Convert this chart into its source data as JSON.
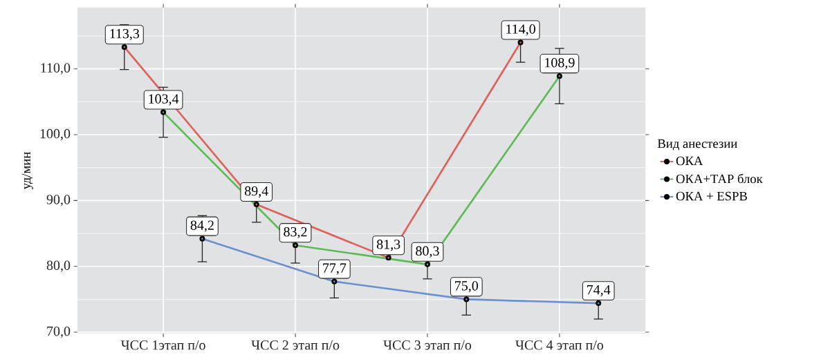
{
  "chart_data": {
    "type": "line",
    "ylabel": "уд/мин",
    "legend_title": "Вид анестезии",
    "categories": [
      "ЧСС 1этап п/о",
      "ЧСС 2 этап п/о",
      "ЧСС 3 этап п/о",
      "ЧСС 4 этап п/о"
    ],
    "series": [
      {
        "name": "ОКА",
        "color": "#e0605a",
        "values": [
          113.3,
          89.4,
          81.3,
          114.0
        ],
        "errors": [
          3.4,
          2.7,
          null,
          3.0
        ],
        "value_labels": [
          "113,3",
          "89,4",
          "81,3",
          "114,0"
        ]
      },
      {
        "name": "ОКА+ТАР блок",
        "color": "#5dbb55",
        "values": [
          103.4,
          83.2,
          80.3,
          108.9
        ],
        "errors": [
          3.8,
          2.7,
          2.2,
          4.2
        ],
        "value_labels": [
          "103,4",
          "83,2",
          "80,3",
          "108,9"
        ]
      },
      {
        "name": "ОКА + ESPB",
        "color": "#6a8fd2",
        "values": [
          84.2,
          77.7,
          75.0,
          74.4
        ],
        "errors": [
          3.5,
          2.5,
          2.4,
          2.4
        ],
        "value_labels": [
          "84,2",
          "77,7",
          "75,0",
          "74,4"
        ]
      }
    ],
    "ylim": [
      69.8,
      119.3
    ],
    "yticks": [
      {
        "value": 70,
        "label": "70,0"
      },
      {
        "value": 80,
        "label": "80,0"
      },
      {
        "value": 90,
        "label": "90,0"
      },
      {
        "value": 100,
        "label": "100,0"
      },
      {
        "value": 110,
        "label": "110,0"
      }
    ],
    "grid": true,
    "legend": "right",
    "marker": "circle",
    "line_style": "solid"
  }
}
